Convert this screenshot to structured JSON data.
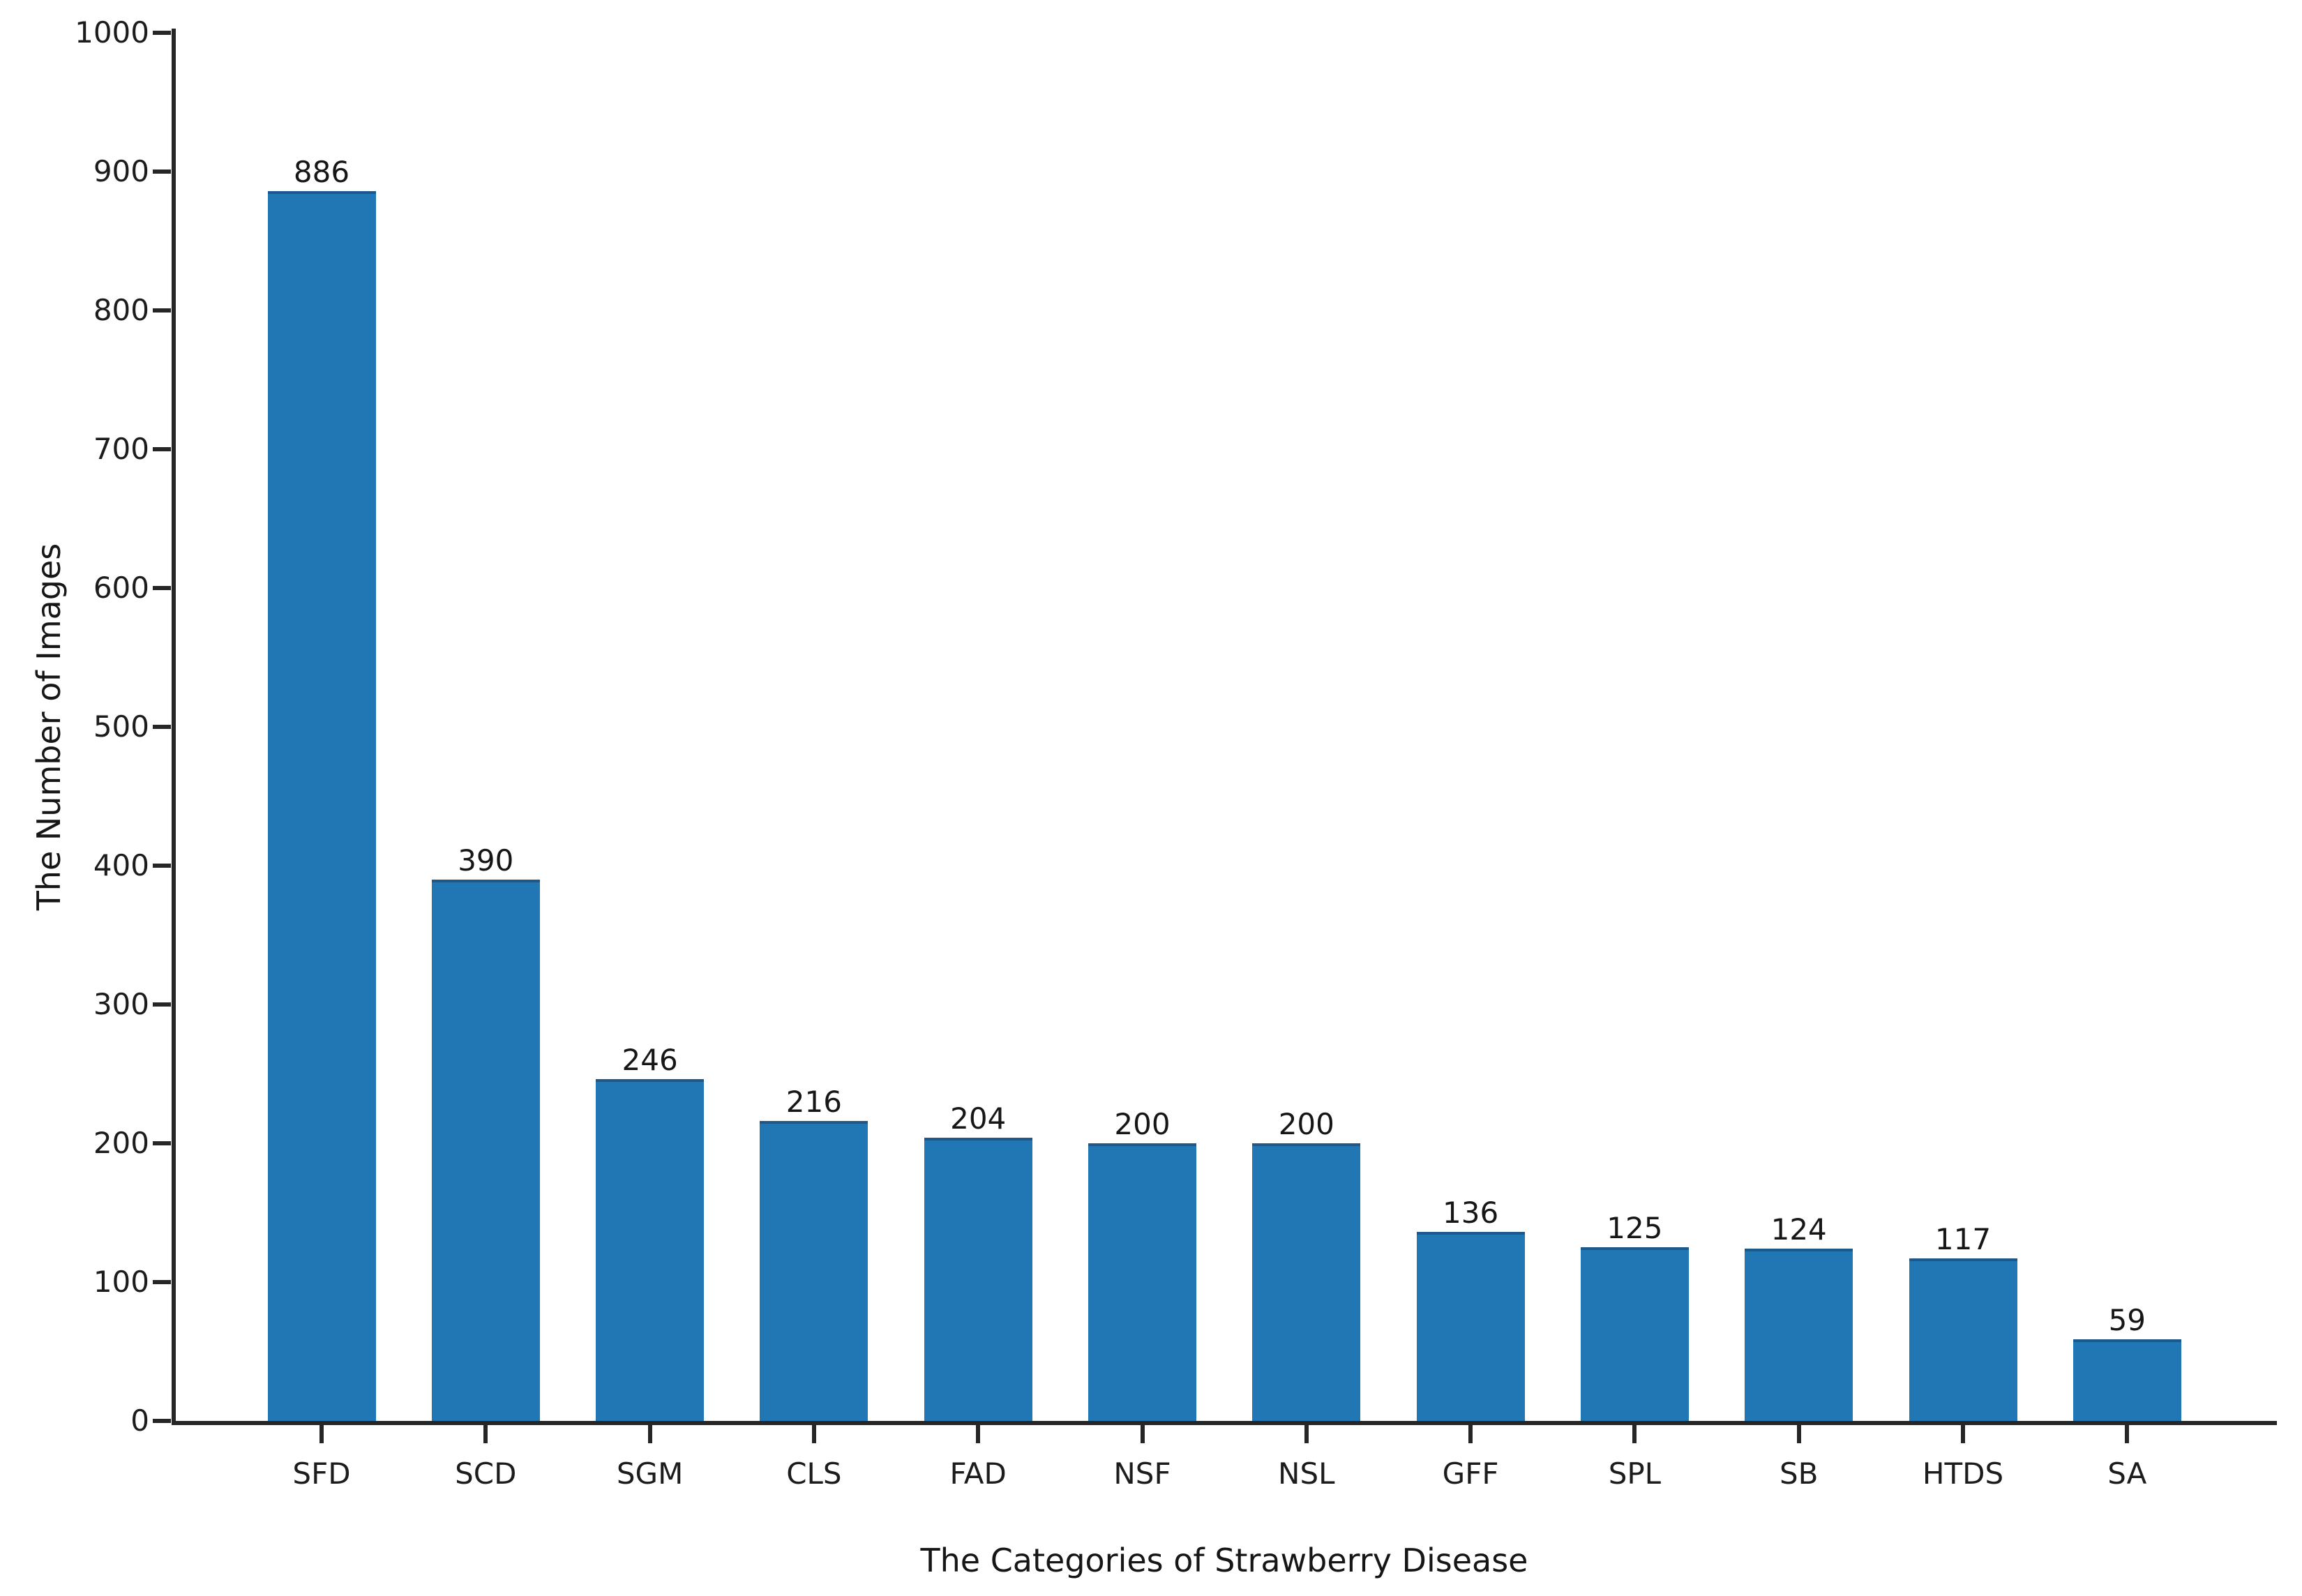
{
  "chart_data": {
    "type": "bar",
    "categories": [
      "SFD",
      "SCD",
      "SGM",
      "CLS",
      "FAD",
      "NSF",
      "NSL",
      "GFF",
      "SPL",
      "SB",
      "HTDS",
      "SA"
    ],
    "values": [
      886,
      390,
      246,
      216,
      204,
      200,
      200,
      136,
      125,
      124,
      117,
      59
    ],
    "title": "",
    "xlabel": "The Categories of Strawberry Disease",
    "ylabel": "The Number of Images",
    "ylim": [
      0,
      1000
    ],
    "yticks": [
      0,
      100,
      200,
      300,
      400,
      500,
      600,
      700,
      800,
      900,
      1000
    ],
    "grid": false,
    "legend_position": "none",
    "value_labels_shown": true,
    "bar_color": "#2176b4",
    "bar_top_edge_color": "#1d588b",
    "axis_color": "#262626",
    "text_color": "#1c1c1c"
  }
}
